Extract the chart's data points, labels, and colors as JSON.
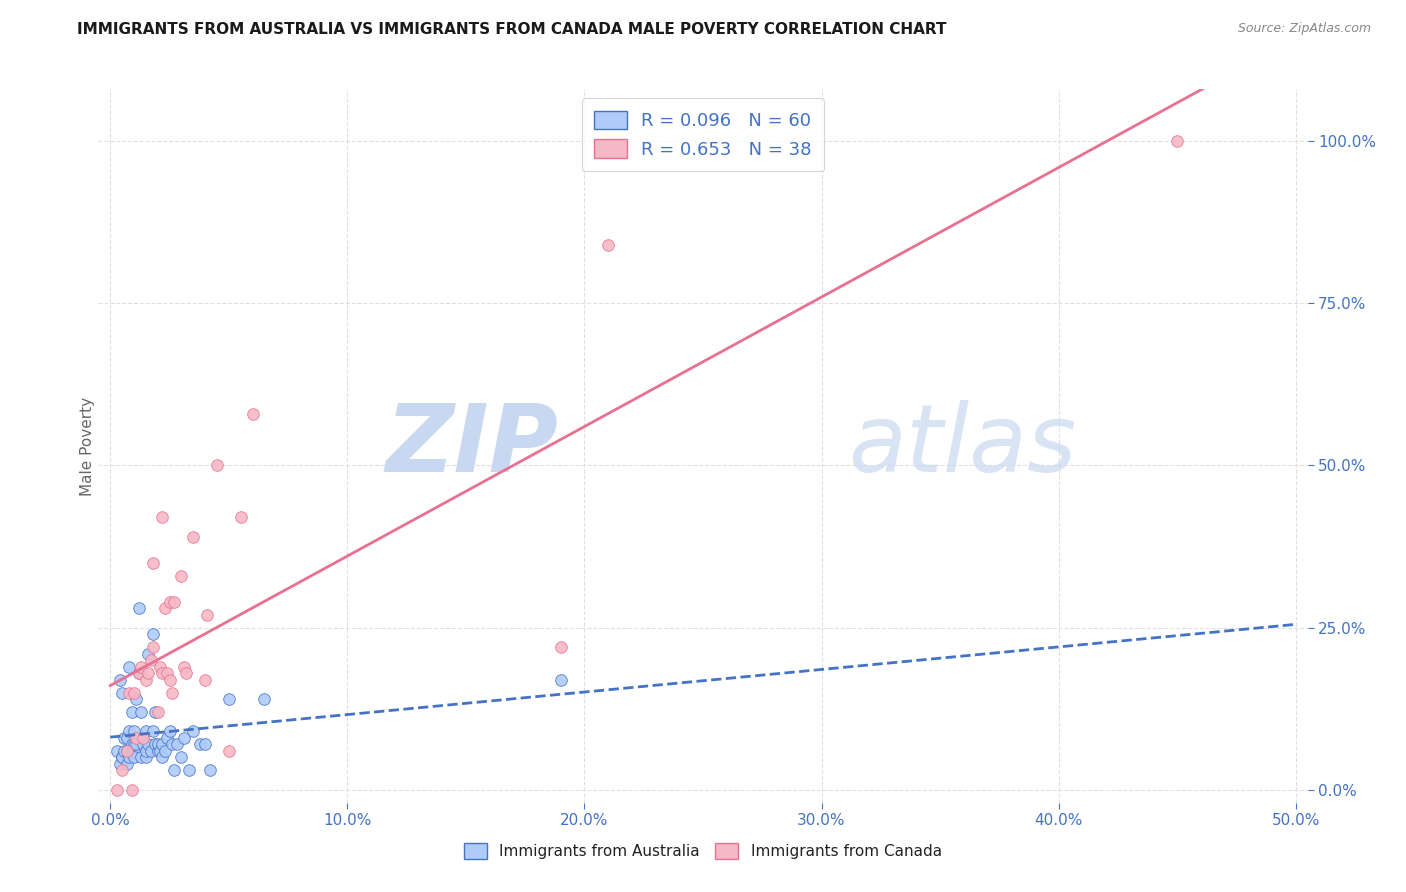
{
  "title": "IMMIGRANTS FROM AUSTRALIA VS IMMIGRANTS FROM CANADA MALE POVERTY CORRELATION CHART",
  "source": "Source: ZipAtlas.com",
  "ylabel": "Male Poverty",
  "yticks": [
    "0.0%",
    "25.0%",
    "50.0%",
    "75.0%",
    "100.0%"
  ],
  "ytick_vals": [
    0.0,
    0.25,
    0.5,
    0.75,
    1.0
  ],
  "xticks": [
    "0.0%",
    "10.0%",
    "20.0%",
    "30.0%",
    "40.0%",
    "50.0%"
  ],
  "xtick_vals": [
    0.0,
    0.1,
    0.2,
    0.3,
    0.4,
    0.5
  ],
  "xlim": [
    -0.005,
    0.505
  ],
  "ylim": [
    -0.02,
    1.08
  ],
  "australia_color": "#aecbfa",
  "canada_color": "#f5b8c4",
  "australia_R": 0.096,
  "australia_N": 60,
  "canada_R": 0.653,
  "canada_N": 38,
  "australia_line_color": "#4472c4",
  "canada_line_color": "#e87090",
  "watermark_zip": "ZIP",
  "watermark_atlas": "atlas",
  "watermark_color": "#c8d8f0",
  "background_color": "#ffffff",
  "grid_color": "#e0e0e0",
  "legend_r_color": "#4472c4",
  "legend_n_color": "#222222",
  "australia_x": [
    0.003,
    0.004,
    0.004,
    0.005,
    0.005,
    0.005,
    0.006,
    0.006,
    0.007,
    0.007,
    0.007,
    0.008,
    0.008,
    0.008,
    0.009,
    0.009,
    0.009,
    0.009,
    0.01,
    0.01,
    0.01,
    0.01,
    0.011,
    0.011,
    0.012,
    0.012,
    0.013,
    0.013,
    0.014,
    0.015,
    0.015,
    0.015,
    0.016,
    0.016,
    0.017,
    0.018,
    0.018,
    0.019,
    0.019,
    0.02,
    0.02,
    0.021,
    0.022,
    0.022,
    0.023,
    0.024,
    0.025,
    0.026,
    0.027,
    0.028,
    0.03,
    0.031,
    0.033,
    0.035,
    0.038,
    0.04,
    0.042,
    0.05,
    0.065,
    0.19
  ],
  "australia_y": [
    0.06,
    0.17,
    0.04,
    0.05,
    0.15,
    0.05,
    0.06,
    0.08,
    0.04,
    0.06,
    0.08,
    0.05,
    0.09,
    0.19,
    0.06,
    0.07,
    0.06,
    0.12,
    0.06,
    0.07,
    0.05,
    0.09,
    0.14,
    0.07,
    0.18,
    0.28,
    0.05,
    0.12,
    0.07,
    0.05,
    0.06,
    0.09,
    0.07,
    0.21,
    0.06,
    0.09,
    0.24,
    0.07,
    0.12,
    0.06,
    0.07,
    0.06,
    0.05,
    0.07,
    0.06,
    0.08,
    0.09,
    0.07,
    0.03,
    0.07,
    0.05,
    0.08,
    0.03,
    0.09,
    0.07,
    0.07,
    0.03,
    0.14,
    0.14,
    0.17
  ],
  "canada_x": [
    0.003,
    0.005,
    0.007,
    0.008,
    0.009,
    0.01,
    0.011,
    0.012,
    0.013,
    0.014,
    0.015,
    0.016,
    0.017,
    0.018,
    0.018,
    0.02,
    0.021,
    0.022,
    0.022,
    0.023,
    0.024,
    0.025,
    0.025,
    0.026,
    0.027,
    0.03,
    0.031,
    0.032,
    0.035,
    0.04,
    0.041,
    0.045,
    0.05,
    0.055,
    0.06,
    0.19,
    0.21,
    0.45
  ],
  "canada_y": [
    0.0,
    0.03,
    0.06,
    0.15,
    0.0,
    0.15,
    0.08,
    0.18,
    0.19,
    0.08,
    0.17,
    0.18,
    0.2,
    0.22,
    0.35,
    0.12,
    0.19,
    0.18,
    0.42,
    0.28,
    0.18,
    0.17,
    0.29,
    0.15,
    0.29,
    0.33,
    0.19,
    0.18,
    0.39,
    0.17,
    0.27,
    0.5,
    0.06,
    0.42,
    0.58,
    0.22,
    0.84,
    1.0
  ]
}
